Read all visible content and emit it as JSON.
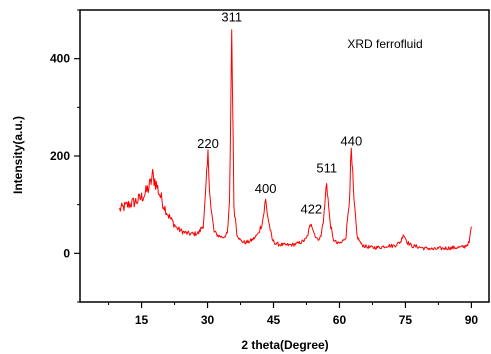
{
  "chart_data": {
    "type": "line",
    "title": "",
    "xlabel": "2 theta(Degree)",
    "ylabel": "Intensity(a.u.)",
    "xlim": [
      1,
      94
    ],
    "ylim": [
      -100,
      500
    ],
    "xticks": [
      15,
      30,
      45,
      60,
      75,
      90
    ],
    "yticks": [
      0,
      200,
      400
    ],
    "grid": false,
    "line_color": "#ff0000",
    "legend": {
      "text": "XRD ferrofluid",
      "placement": "top-right"
    },
    "annotations": [
      {
        "text": "220",
        "x": 30.1,
        "y": 200
      },
      {
        "text": "311",
        "x": 35.5,
        "y": 460
      },
      {
        "text": "400",
        "x": 43.2,
        "y": 108
      },
      {
        "text": "422",
        "x": 53.6,
        "y": 65
      },
      {
        "text": "511",
        "x": 57.1,
        "y": 150
      },
      {
        "text": "440",
        "x": 62.7,
        "y": 205
      }
    ],
    "series": [
      {
        "x": [
          10,
          11,
          12,
          13,
          14,
          15,
          16,
          17,
          17.5,
          18,
          19,
          20,
          21,
          22,
          23,
          24,
          25,
          26,
          27,
          28,
          29,
          29.5,
          30.1,
          30.8,
          31.5,
          32.5,
          33.5,
          34.5,
          35.0,
          35.5,
          36.0,
          36.7,
          37.5,
          38.5,
          39.5,
          40.5,
          41.5,
          42.5,
          43.2,
          43.9,
          44.7,
          45.5,
          46.5,
          47.5,
          48.5,
          49.5,
          50.5,
          51.5,
          52.5,
          53.0,
          53.6,
          54.2,
          55.0,
          55.8,
          56.5,
          57.1,
          57.7,
          58.5,
          59.5,
          60.5,
          61.5,
          62.2,
          62.7,
          63.3,
          64.0,
          65.0,
          66.0,
          67.0,
          68.0,
          69.0,
          70.0,
          71.0,
          72.0,
          73.0,
          74.0,
          74.5,
          75.5,
          76.5,
          77.5,
          78.5,
          79.5,
          80.5,
          81.5,
          82.5,
          83.5,
          84.5,
          85.5,
          86.5,
          87.5,
          88.5,
          89.5,
          90.0
        ],
        "y": [
          90,
          95,
          100,
          104,
          108,
          115,
          125,
          142,
          160,
          150,
          125,
          100,
          80,
          65,
          52,
          46,
          42,
          40,
          40,
          42,
          58,
          110,
          200,
          90,
          44,
          36,
          33,
          40,
          100,
          460,
          100,
          40,
          26,
          22,
          24,
          30,
          40,
          65,
          108,
          65,
          28,
          20,
          18,
          17,
          17,
          18,
          20,
          24,
          30,
          45,
          65,
          42,
          28,
          35,
          80,
          150,
          75,
          30,
          20,
          22,
          35,
          110,
          205,
          105,
          35,
          18,
          14,
          12,
          12,
          12,
          14,
          16,
          15,
          18,
          25,
          40,
          22,
          15,
          14,
          12,
          10,
          10,
          8,
          10,
          10,
          11,
          11,
          12,
          12,
          14,
          22,
          55
        ]
      }
    ]
  }
}
